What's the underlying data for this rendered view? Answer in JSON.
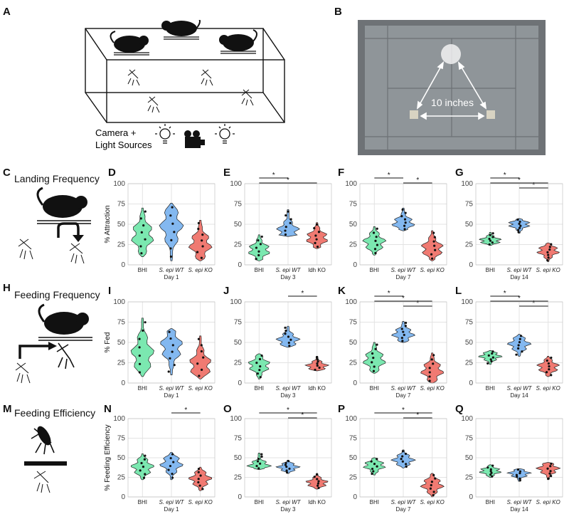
{
  "panel_letters": {
    "A": "A",
    "B": "B",
    "C": "C",
    "D": "D",
    "E": "E",
    "F": "F",
    "G": "G",
    "H": "H",
    "I": "I",
    "J": "J",
    "K": "K",
    "L": "L",
    "M": "M",
    "N": "N",
    "O": "O",
    "P": "P",
    "Q": "Q"
  },
  "row_titles": {
    "landing": "Landing Frequency",
    "feeding": "Feeding Frequency",
    "efficiency": "Feeding Efficiency"
  },
  "panelA": {
    "camera_label_1": "Camera +",
    "camera_label_2": "Light Sources"
  },
  "panelB": {
    "distance_label": "10 inches"
  },
  "colors": {
    "BHI": "#7be8b0",
    "WT": "#83b8f0",
    "KO": "#f07a72",
    "grid": "#e3e3e3"
  },
  "chart_data": [
    {
      "id": "D",
      "type": "violin",
      "ylabel": "% Attraction",
      "ylim": [
        0,
        100
      ],
      "yticks": [
        0,
        25,
        50,
        75,
        100
      ],
      "categories": [
        "BHI",
        "S. epi WT",
        "S. epi KO"
      ],
      "day": "Day 1",
      "medians": [
        36,
        48,
        25
      ],
      "ranges": [
        [
          10,
          70
        ],
        [
          5,
          76
        ],
        [
          5,
          55
        ]
      ],
      "significance": []
    },
    {
      "id": "E",
      "type": "violin",
      "ylabel": "",
      "ylim": [
        0,
        100
      ],
      "yticks": [
        0,
        25,
        50,
        75,
        100
      ],
      "categories": [
        "BHI",
        "S. epi WT",
        "ldh KO"
      ],
      "day": "Day 3",
      "medians": [
        18,
        42,
        33
      ],
      "ranges": [
        [
          5,
          37
        ],
        [
          35,
          68
        ],
        [
          20,
          52
        ]
      ],
      "significance": [
        {
          "from": 0,
          "to": 1,
          "label": "*"
        },
        {
          "from": 0,
          "to": 2,
          "label": "*"
        }
      ]
    },
    {
      "id": "F",
      "type": "violin",
      "ylabel": "",
      "ylim": [
        0,
        100
      ],
      "yticks": [
        0,
        25,
        50,
        75,
        100
      ],
      "categories": [
        "BHI",
        "S. epi WT",
        "S. epi KO"
      ],
      "day": "Day 7",
      "medians": [
        28,
        51,
        20
      ],
      "ranges": [
        [
          12,
          47
        ],
        [
          42,
          70
        ],
        [
          5,
          42
        ]
      ],
      "significance": [
        {
          "from": 0,
          "to": 1,
          "label": "*"
        },
        {
          "from": 1,
          "to": 2,
          "label": "*"
        }
      ]
    },
    {
      "id": "G",
      "type": "violin",
      "ylabel": "",
      "ylim": [
        0,
        100
      ],
      "yticks": [
        0,
        25,
        50,
        75,
        100
      ],
      "categories": [
        "BHI",
        "S. epi WT",
        "S. epi KO"
      ],
      "day": "Day 14",
      "medians": [
        30,
        50,
        17
      ],
      "ranges": [
        [
          24,
          40
        ],
        [
          39,
          57
        ],
        [
          4,
          27
        ]
      ],
      "significance": [
        {
          "from": 0,
          "to": 1,
          "label": "*"
        },
        {
          "from": 0,
          "to": 2,
          "label": "*"
        },
        {
          "from": 1,
          "to": 2,
          "label": "*"
        }
      ]
    },
    {
      "id": "I",
      "type": "violin",
      "ylabel": "% Fed",
      "ylim": [
        0,
        100
      ],
      "yticks": [
        0,
        25,
        50,
        75,
        100
      ],
      "categories": [
        "BHI",
        "S. epi WT",
        "S. epi KO"
      ],
      "day": "Day 1",
      "medians": [
        35,
        45,
        22
      ],
      "ranges": [
        [
          8,
          80
        ],
        [
          10,
          67
        ],
        [
          5,
          58
        ]
      ],
      "significance": []
    },
    {
      "id": "J",
      "type": "violin",
      "ylabel": "",
      "ylim": [
        0,
        100
      ],
      "yticks": [
        0,
        25,
        50,
        75,
        100
      ],
      "categories": [
        "BHI",
        "S. epi WT",
        "ldh KO"
      ],
      "day": "Day 3",
      "medians": [
        22,
        53,
        21
      ],
      "ranges": [
        [
          5,
          36
        ],
        [
          44,
          70
        ],
        [
          15,
          33
        ]
      ],
      "significance": [
        {
          "from": 1,
          "to": 2,
          "label": "*"
        }
      ]
    },
    {
      "id": "K",
      "type": "violin",
      "ylabel": "",
      "ylim": [
        0,
        100
      ],
      "yticks": [
        0,
        25,
        50,
        75,
        100
      ],
      "categories": [
        "BHI",
        "S. epi WT",
        "S. epi KO"
      ],
      "day": "Day 7",
      "medians": [
        28,
        60,
        15
      ],
      "ranges": [
        [
          12,
          50
        ],
        [
          50,
          76
        ],
        [
          0,
          37
        ]
      ],
      "significance": [
        {
          "from": 0,
          "to": 1,
          "label": "*"
        },
        {
          "from": 0,
          "to": 2,
          "label": "*"
        },
        {
          "from": 1,
          "to": 2,
          "label": "*"
        }
      ]
    },
    {
      "id": "L",
      "type": "violin",
      "ylabel": "",
      "ylim": [
        0,
        100
      ],
      "yticks": [
        0,
        25,
        50,
        75,
        100
      ],
      "categories": [
        "BHI",
        "S. epi WT",
        "S. epi KO"
      ],
      "day": "Day 14",
      "medians": [
        33,
        48,
        20
      ],
      "ranges": [
        [
          23,
          40
        ],
        [
          33,
          60
        ],
        [
          8,
          33
        ]
      ],
      "significance": [
        {
          "from": 0,
          "to": 1,
          "label": "*"
        },
        {
          "from": 0,
          "to": 2,
          "label": "*"
        },
        {
          "from": 1,
          "to": 2,
          "label": "*"
        }
      ]
    },
    {
      "id": "N",
      "type": "violin",
      "ylabel": "% Feeding Efficiency",
      "ylim": [
        0,
        100
      ],
      "yticks": [
        0,
        25,
        50,
        75,
        100
      ],
      "categories": [
        "BHI",
        "S. epi WT",
        "S. epi KO"
      ],
      "day": "Day 1",
      "medians": [
        38,
        42,
        23
      ],
      "ranges": [
        [
          22,
          55
        ],
        [
          22,
          57
        ],
        [
          8,
          38
        ]
      ],
      "significance": [
        {
          "from": 1,
          "to": 2,
          "label": "*"
        }
      ]
    },
    {
      "id": "O",
      "type": "violin",
      "ylabel": "",
      "ylim": [
        0,
        100
      ],
      "yticks": [
        0,
        25,
        50,
        75,
        100
      ],
      "categories": [
        "BHI",
        "S. epi WT",
        "ldh KO"
      ],
      "day": "Day 3",
      "medians": [
        40,
        38,
        18
      ],
      "ranges": [
        [
          35,
          56
        ],
        [
          30,
          47
        ],
        [
          10,
          30
        ]
      ],
      "significance": [
        {
          "from": 0,
          "to": 2,
          "label": "*"
        },
        {
          "from": 1,
          "to": 2,
          "label": "*"
        }
      ]
    },
    {
      "id": "P",
      "type": "violin",
      "ylabel": "",
      "ylim": [
        0,
        100
      ],
      "yticks": [
        0,
        25,
        50,
        75,
        100
      ],
      "categories": [
        "BHI",
        "S. epi WT",
        "S. epi KO"
      ],
      "day": "Day 7",
      "medians": [
        40,
        47,
        15
      ],
      "ranges": [
        [
          28,
          50
        ],
        [
          37,
          60
        ],
        [
          0,
          30
        ]
      ],
      "significance": [
        {
          "from": 0,
          "to": 2,
          "label": "*"
        },
        {
          "from": 1,
          "to": 2,
          "label": "*"
        }
      ]
    },
    {
      "id": "Q",
      "type": "violin",
      "ylabel": "",
      "ylim": [
        0,
        100
      ],
      "yticks": [
        0,
        25,
        50,
        75,
        100
      ],
      "categories": [
        "BHI",
        "S. epi WT",
        "S. epi KO"
      ],
      "day": "Day 14",
      "medians": [
        33,
        30,
        36
      ],
      "ranges": [
        [
          25,
          41
        ],
        [
          20,
          36
        ],
        [
          22,
          44
        ]
      ],
      "significance": []
    }
  ]
}
